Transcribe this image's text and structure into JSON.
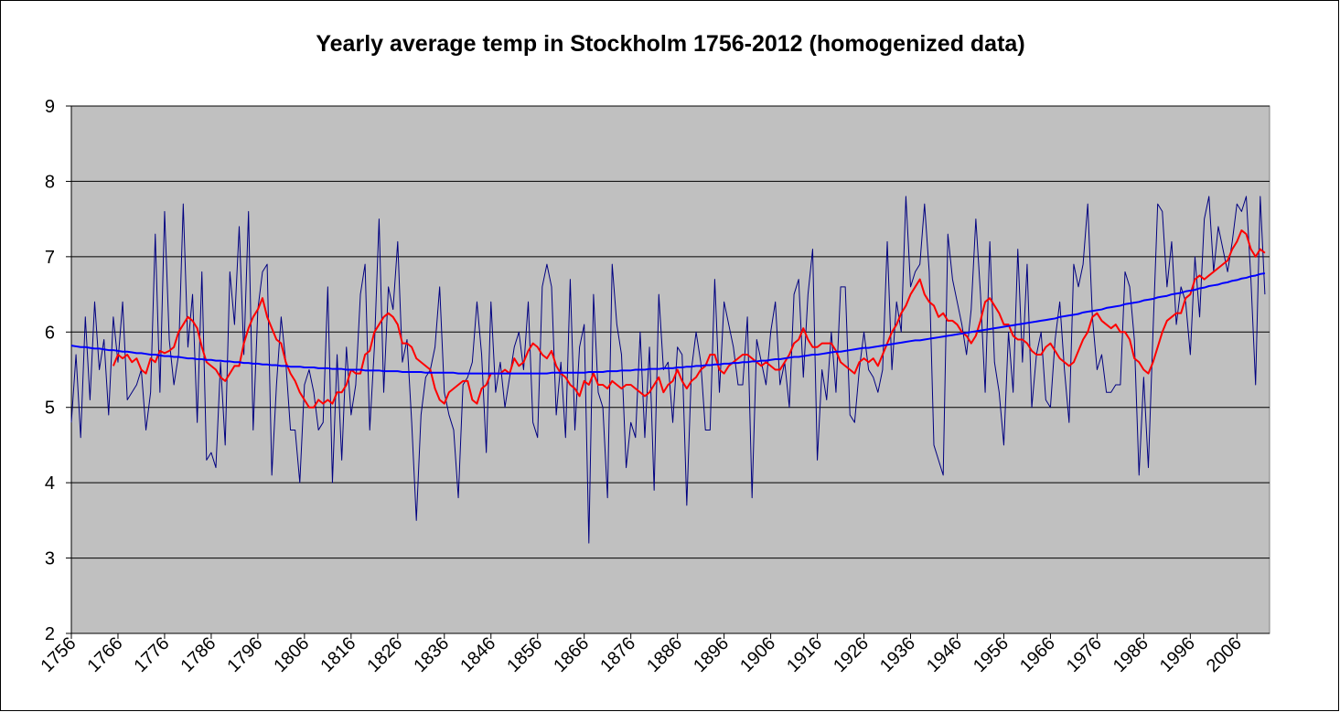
{
  "chart_data": {
    "type": "line",
    "title": "Yearly average temp in Stockholm 1756-2012 (homogenized data)",
    "x": [
      1756,
      1757,
      1758,
      1759,
      1760,
      1761,
      1762,
      1763,
      1764,
      1765,
      1766,
      1767,
      1768,
      1769,
      1770,
      1771,
      1772,
      1773,
      1774,
      1775,
      1776,
      1777,
      1778,
      1779,
      1780,
      1781,
      1782,
      1783,
      1784,
      1785,
      1786,
      1787,
      1788,
      1789,
      1790,
      1791,
      1792,
      1793,
      1794,
      1795,
      1796,
      1797,
      1798,
      1799,
      1800,
      1801,
      1802,
      1803,
      1804,
      1805,
      1806,
      1807,
      1808,
      1809,
      1810,
      1811,
      1812,
      1813,
      1814,
      1815,
      1816,
      1817,
      1818,
      1819,
      1820,
      1821,
      1822,
      1823,
      1824,
      1825,
      1826,
      1827,
      1828,
      1829,
      1830,
      1831,
      1832,
      1833,
      1834,
      1835,
      1836,
      1837,
      1838,
      1839,
      1840,
      1841,
      1842,
      1843,
      1844,
      1845,
      1846,
      1847,
      1848,
      1849,
      1850,
      1851,
      1852,
      1853,
      1854,
      1855,
      1856,
      1857,
      1858,
      1859,
      1860,
      1861,
      1862,
      1863,
      1864,
      1865,
      1866,
      1867,
      1868,
      1869,
      1870,
      1871,
      1872,
      1873,
      1874,
      1875,
      1876,
      1877,
      1878,
      1879,
      1880,
      1881,
      1882,
      1883,
      1884,
      1885,
      1886,
      1887,
      1888,
      1889,
      1890,
      1891,
      1892,
      1893,
      1894,
      1895,
      1896,
      1897,
      1898,
      1899,
      1900,
      1901,
      1902,
      1903,
      1904,
      1905,
      1906,
      1907,
      1908,
      1909,
      1910,
      1911,
      1912,
      1913,
      1914,
      1915,
      1916,
      1917,
      1918,
      1919,
      1920,
      1921,
      1922,
      1923,
      1924,
      1925,
      1926,
      1927,
      1928,
      1929,
      1930,
      1931,
      1932,
      1933,
      1934,
      1935,
      1936,
      1937,
      1938,
      1939,
      1940,
      1941,
      1942,
      1943,
      1944,
      1945,
      1946,
      1947,
      1948,
      1949,
      1950,
      1951,
      1952,
      1953,
      1954,
      1955,
      1956,
      1957,
      1958,
      1959,
      1960,
      1961,
      1962,
      1963,
      1964,
      1965,
      1966,
      1967,
      1968,
      1969,
      1970,
      1971,
      1972,
      1973,
      1974,
      1975,
      1976,
      1977,
      1978,
      1979,
      1980,
      1981,
      1982,
      1983,
      1984,
      1985,
      1986,
      1987,
      1988,
      1989,
      1990,
      1991,
      1992,
      1993,
      1994,
      1995,
      1996,
      1997,
      1998,
      1999,
      2000,
      2001,
      2002,
      2003,
      2004,
      2005,
      2006,
      2007,
      2008,
      2009,
      2010,
      2011,
      2012
    ],
    "series": [
      {
        "color": "#000080",
        "values": [
          4.8,
          5.7,
          4.6,
          6.2,
          5.1,
          6.4,
          5.5,
          5.9,
          4.9,
          6.2,
          5.6,
          6.4,
          5.1,
          5.2,
          5.3,
          5.5,
          4.7,
          5.2,
          7.3,
          5.2,
          7.6,
          5.9,
          5.3,
          5.7,
          7.7,
          5.8,
          6.5,
          4.8,
          6.8,
          4.3,
          4.4,
          4.2,
          5.6,
          4.5,
          6.8,
          6.1,
          7.4,
          5.7,
          7.6,
          4.7,
          6.3,
          6.8,
          6.9,
          4.1,
          5.3,
          6.2,
          5.6,
          4.7,
          4.7,
          4.0,
          5.3,
          5.5,
          5.2,
          4.7,
          4.8,
          6.6,
          4.0,
          5.7,
          4.3,
          5.8,
          4.9,
          5.3,
          6.5,
          6.9,
          4.7,
          5.8,
          7.5,
          5.2,
          6.6,
          6.3,
          7.2,
          5.6,
          5.9,
          4.8,
          3.5,
          4.9,
          5.4,
          5.5,
          5.8,
          6.6,
          5.2,
          4.9,
          4.7,
          3.8,
          5.3,
          5.4,
          5.6,
          6.4,
          5.7,
          4.4,
          6.4,
          5.2,
          5.6,
          5.0,
          5.4,
          5.8,
          6.0,
          5.5,
          6.4,
          4.8,
          4.6,
          6.6,
          6.9,
          6.6,
          4.9,
          5.6,
          4.6,
          6.7,
          4.7,
          5.8,
          6.1,
          3.2,
          6.5,
          5.2,
          5.0,
          3.8,
          6.9,
          6.1,
          5.7,
          4.2,
          4.8,
          4.6,
          6.0,
          4.6,
          5.8,
          3.9,
          6.5,
          5.5,
          5.6,
          4.8,
          5.8,
          5.7,
          3.7,
          5.5,
          6.0,
          5.6,
          4.7,
          4.7,
          6.7,
          5.2,
          6.4,
          6.1,
          5.8,
          5.3,
          5.3,
          6.2,
          3.8,
          5.9,
          5.6,
          5.3,
          6.0,
          6.4,
          5.3,
          5.6,
          5.0,
          6.5,
          6.7,
          5.4,
          6.5,
          7.1,
          4.3,
          5.5,
          5.1,
          6.0,
          5.2,
          6.6,
          6.6,
          4.9,
          4.8,
          5.5,
          6.0,
          5.5,
          5.4,
          5.2,
          5.5,
          7.2,
          5.5,
          6.4,
          6.0,
          7.8,
          6.6,
          6.8,
          6.9,
          7.7,
          6.8,
          4.5,
          4.3,
          4.1,
          7.3,
          6.7,
          6.4,
          6.1,
          5.7,
          6.3,
          7.5,
          6.5,
          5.2,
          7.2,
          5.6,
          5.2,
          4.5,
          6.0,
          5.2,
          7.1,
          5.6,
          6.9,
          5.0,
          5.7,
          6.0,
          5.1,
          5.0,
          5.9,
          6.4,
          5.5,
          4.8,
          6.9,
          6.6,
          6.9,
          7.7,
          6.2,
          5.5,
          5.7,
          5.2,
          5.2,
          5.3,
          5.3,
          6.8,
          6.6,
          5.9,
          4.1,
          5.4,
          4.2,
          6.0,
          7.7,
          7.6,
          6.6,
          7.2,
          6.1,
          6.6,
          6.4,
          5.7,
          7.0,
          6.2,
          7.5,
          7.8,
          6.8,
          7.4,
          7.1,
          6.8,
          7.2,
          7.7,
          7.6,
          7.8,
          6.7,
          5.3,
          7.8,
          6.5
        ]
      },
      {
        "color": "#ff0000",
        "values": [
          null,
          null,
          null,
          null,
          null,
          null,
          null,
          null,
          null,
          5.55,
          5.7,
          5.65,
          5.7,
          5.6,
          5.65,
          5.5,
          5.45,
          5.65,
          5.6,
          5.75,
          5.72,
          5.75,
          5.8,
          6.0,
          6.1,
          6.2,
          6.15,
          6.05,
          5.8,
          5.6,
          5.55,
          5.5,
          5.4,
          5.35,
          5.45,
          5.55,
          5.55,
          5.85,
          6.05,
          6.2,
          6.3,
          6.45,
          6.2,
          6.05,
          5.9,
          5.85,
          5.6,
          5.45,
          5.35,
          5.2,
          5.1,
          5.0,
          5.0,
          5.1,
          5.05,
          5.1,
          5.05,
          5.2,
          5.2,
          5.3,
          5.5,
          5.45,
          5.45,
          5.7,
          5.75,
          6.0,
          6.1,
          6.2,
          6.25,
          6.2,
          6.1,
          5.85,
          5.85,
          5.8,
          5.65,
          5.6,
          5.55,
          5.5,
          5.25,
          5.1,
          5.05,
          5.2,
          5.25,
          5.3,
          5.35,
          5.35,
          5.1,
          5.05,
          5.25,
          5.3,
          5.45,
          5.45,
          5.45,
          5.5,
          5.45,
          5.65,
          5.55,
          5.6,
          5.75,
          5.85,
          5.8,
          5.7,
          5.65,
          5.75,
          5.55,
          5.45,
          5.4,
          5.3,
          5.25,
          5.15,
          5.35,
          5.3,
          5.45,
          5.3,
          5.3,
          5.25,
          5.35,
          5.3,
          5.25,
          5.3,
          5.3,
          5.25,
          5.2,
          5.15,
          5.2,
          5.3,
          5.4,
          5.2,
          5.3,
          5.35,
          5.5,
          5.35,
          5.25,
          5.35,
          5.4,
          5.5,
          5.55,
          5.7,
          5.7,
          5.5,
          5.45,
          5.55,
          5.6,
          5.65,
          5.7,
          5.7,
          5.65,
          5.6,
          5.55,
          5.6,
          5.55,
          5.5,
          5.5,
          5.6,
          5.7,
          5.85,
          5.9,
          6.05,
          5.9,
          5.8,
          5.8,
          5.85,
          5.85,
          5.85,
          5.75,
          5.6,
          5.55,
          5.5,
          5.45,
          5.6,
          5.65,
          5.6,
          5.65,
          5.55,
          5.7,
          5.85,
          6.0,
          6.1,
          6.25,
          6.35,
          6.5,
          6.6,
          6.7,
          6.5,
          6.4,
          6.35,
          6.2,
          6.25,
          6.15,
          6.15,
          6.1,
          6.0,
          5.95,
          5.85,
          5.95,
          6.15,
          6.4,
          6.45,
          6.35,
          6.25,
          6.1,
          6.1,
          5.95,
          5.9,
          5.9,
          5.85,
          5.75,
          5.7,
          5.7,
          5.8,
          5.85,
          5.75,
          5.65,
          5.6,
          5.55,
          5.6,
          5.75,
          5.9,
          6.0,
          6.2,
          6.25,
          6.15,
          6.1,
          6.05,
          6.1,
          6.0,
          6.0,
          5.9,
          5.65,
          5.6,
          5.5,
          5.45,
          5.6,
          5.8,
          6.0,
          6.15,
          6.2,
          6.25,
          6.25,
          6.45,
          6.5,
          6.7,
          6.75,
          6.7,
          6.75,
          6.8,
          6.85,
          6.9,
          6.95,
          7.1,
          7.2,
          7.35,
          7.3,
          7.1,
          7.0,
          7.1,
          7.05
        ]
      },
      {
        "color": "#0000ff",
        "values": [
          5.82,
          5.81,
          5.8,
          5.8,
          5.79,
          5.78,
          5.78,
          5.77,
          5.76,
          5.76,
          5.75,
          5.74,
          5.74,
          5.73,
          5.72,
          5.72,
          5.71,
          5.7,
          5.7,
          5.69,
          5.68,
          5.68,
          5.67,
          5.67,
          5.66,
          5.65,
          5.65,
          5.64,
          5.64,
          5.63,
          5.63,
          5.62,
          5.62,
          5.61,
          5.61,
          5.6,
          5.6,
          5.59,
          5.59,
          5.58,
          5.58,
          5.57,
          5.57,
          5.56,
          5.56,
          5.55,
          5.55,
          5.54,
          5.54,
          5.54,
          5.53,
          5.53,
          5.53,
          5.52,
          5.52,
          5.52,
          5.51,
          5.51,
          5.51,
          5.5,
          5.5,
          5.5,
          5.5,
          5.49,
          5.49,
          5.49,
          5.49,
          5.48,
          5.48,
          5.48,
          5.48,
          5.47,
          5.47,
          5.47,
          5.47,
          5.47,
          5.46,
          5.46,
          5.46,
          5.46,
          5.46,
          5.46,
          5.46,
          5.45,
          5.45,
          5.45,
          5.45,
          5.45,
          5.45,
          5.45,
          5.45,
          5.45,
          5.45,
          5.45,
          5.45,
          5.45,
          5.45,
          5.45,
          5.45,
          5.45,
          5.45,
          5.45,
          5.45,
          5.46,
          5.46,
          5.46,
          5.46,
          5.46,
          5.46,
          5.46,
          5.46,
          5.47,
          5.47,
          5.47,
          5.47,
          5.48,
          5.48,
          5.48,
          5.49,
          5.49,
          5.49,
          5.5,
          5.5,
          5.5,
          5.51,
          5.51,
          5.51,
          5.52,
          5.52,
          5.52,
          5.53,
          5.53,
          5.54,
          5.54,
          5.55,
          5.55,
          5.56,
          5.56,
          5.57,
          5.57,
          5.58,
          5.58,
          5.59,
          5.59,
          5.6,
          5.6,
          5.61,
          5.61,
          5.62,
          5.62,
          5.63,
          5.64,
          5.64,
          5.65,
          5.66,
          5.67,
          5.67,
          5.68,
          5.69,
          5.7,
          5.7,
          5.71,
          5.72,
          5.73,
          5.74,
          5.74,
          5.75,
          5.76,
          5.77,
          5.78,
          5.79,
          5.79,
          5.8,
          5.81,
          5.82,
          5.83,
          5.84,
          5.85,
          5.86,
          5.87,
          5.88,
          5.89,
          5.89,
          5.9,
          5.91,
          5.92,
          5.93,
          5.94,
          5.95,
          5.96,
          5.97,
          5.98,
          5.99,
          6.0,
          6.01,
          6.02,
          6.03,
          6.04,
          6.05,
          6.06,
          6.07,
          6.08,
          6.09,
          6.1,
          6.11,
          6.12,
          6.13,
          6.14,
          6.15,
          6.16,
          6.17,
          6.18,
          6.2,
          6.21,
          6.22,
          6.23,
          6.24,
          6.26,
          6.27,
          6.28,
          6.29,
          6.3,
          6.32,
          6.33,
          6.34,
          6.35,
          6.37,
          6.38,
          6.39,
          6.4,
          6.42,
          6.43,
          6.44,
          6.46,
          6.47,
          6.48,
          6.5,
          6.51,
          6.52,
          6.54,
          6.55,
          6.56,
          6.58,
          6.59,
          6.61,
          6.62,
          6.63,
          6.65,
          6.66,
          6.68,
          6.69,
          6.71,
          6.72,
          6.74,
          6.75,
          6.77,
          6.78
        ]
      }
    ],
    "xlim": [
      1756,
      2013
    ],
    "xticks": [
      1756,
      1766,
      1776,
      1786,
      1796,
      1806,
      1816,
      1826,
      1836,
      1846,
      1856,
      1866,
      1876,
      1886,
      1896,
      1906,
      1916,
      1926,
      1936,
      1946,
      1956,
      1966,
      1976,
      1986,
      1996,
      2006
    ],
    "ylim": [
      2,
      9
    ],
    "yticks": [
      2,
      3,
      4,
      5,
      6,
      7,
      8,
      9
    ],
    "grid": true,
    "plot_background": "#c0c0c0"
  }
}
